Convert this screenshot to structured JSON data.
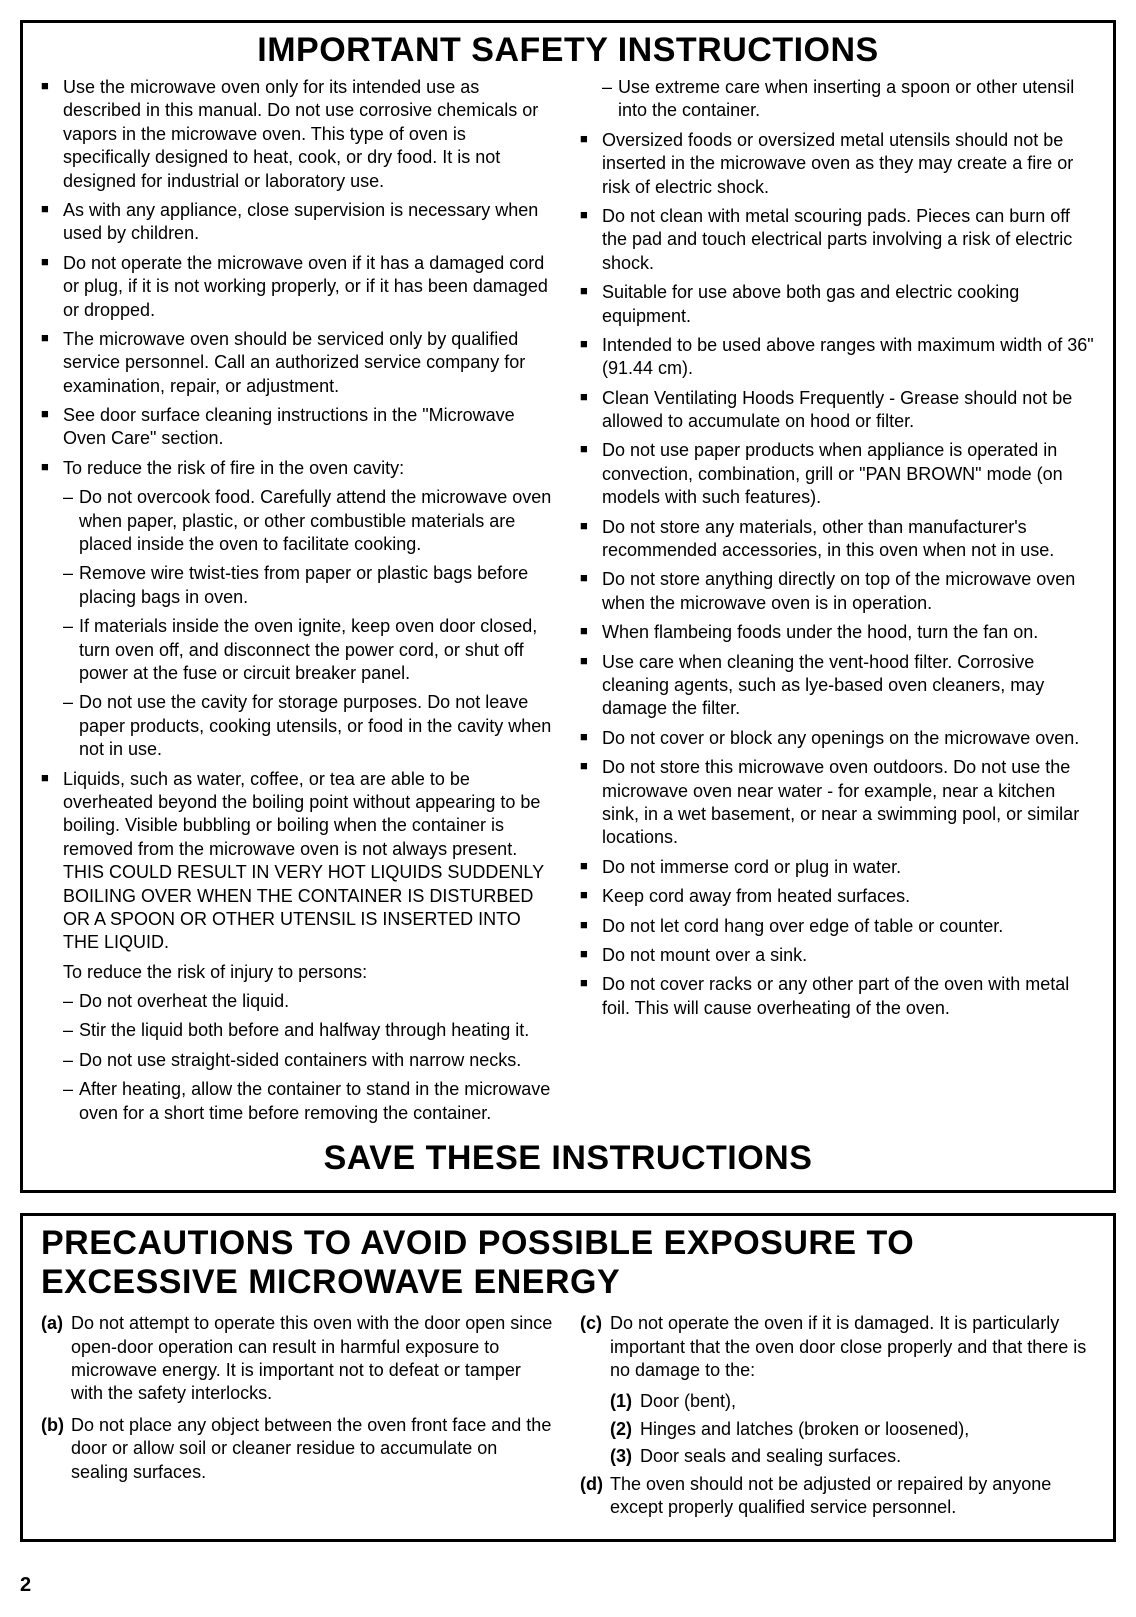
{
  "page_number": "2",
  "safety_section": {
    "title": "IMPORTANT SAFETY INSTRUCTIONS",
    "footer": "SAVE THESE INSTRUCTIONS",
    "left_items": [
      {
        "type": "bullet",
        "text": "Use the microwave oven only for its intended use as described in this manual. Do not use corrosive chemicals or vapors in the microwave oven. This type of oven is specifically designed to heat, cook, or dry food. It is not designed for industrial or laboratory use."
      },
      {
        "type": "bullet",
        "text": "As with any appliance, close supervision is necessary when used by children."
      },
      {
        "type": "bullet",
        "text": "Do not operate the microwave oven if it has a damaged cord or plug, if it is not working properly, or if it has been damaged or dropped."
      },
      {
        "type": "bullet",
        "text": "The microwave oven should be serviced only by qualified service personnel. Call an authorized service company for examination, repair, or adjustment."
      },
      {
        "type": "bullet",
        "text": "See door surface cleaning instructions in the \"Microwave Oven Care\" section."
      },
      {
        "type": "bullet",
        "text": "To reduce the risk of fire in the oven cavity:"
      },
      {
        "type": "sub",
        "text": "Do not overcook food. Carefully attend the microwave oven when paper, plastic, or other combustible materials are placed inside the oven to facilitate cooking."
      },
      {
        "type": "sub",
        "text": "Remove wire twist-ties from paper or plastic bags before placing bags in oven."
      },
      {
        "type": "sub",
        "text": "If materials inside the oven ignite, keep oven door closed, turn oven off, and disconnect the power cord, or shut off power at the fuse or circuit breaker panel."
      },
      {
        "type": "sub",
        "text": "Do not use the cavity for storage purposes. Do not leave paper products, cooking utensils, or food in the cavity when not in use."
      },
      {
        "type": "bullet",
        "text": "Liquids, such as water, coffee, or tea are able to be overheated beyond the boiling point without appearing to be boiling. Visible bubbling or boiling when the container is removed from the microwave oven is not always present. THIS COULD RESULT IN VERY HOT LIQUIDS SUDDENLY BOILING OVER WHEN THE CONTAINER IS DISTURBED OR A SPOON OR OTHER UTENSIL IS INSERTED INTO THE LIQUID."
      },
      {
        "type": "plain",
        "text": "To reduce the risk of injury to persons:"
      },
      {
        "type": "sub",
        "text": "Do not overheat the liquid."
      },
      {
        "type": "sub",
        "text": "Stir the liquid both before and halfway through heating it."
      },
      {
        "type": "sub",
        "text": "Do not use straight-sided containers with narrow necks."
      },
      {
        "type": "sub",
        "text": "After heating, allow the container to stand in the microwave oven for a short time before removing the container."
      }
    ],
    "right_items": [
      {
        "type": "sub",
        "text": "Use extreme care when inserting a spoon or other utensil into the container."
      },
      {
        "type": "bullet",
        "text": "Oversized foods or oversized metal utensils should not be inserted in the microwave oven as they may create a fire or risk of electric shock."
      },
      {
        "type": "bullet",
        "text": "Do not clean with metal scouring pads. Pieces can burn off the pad and touch electrical parts involving a risk of electric shock."
      },
      {
        "type": "bullet",
        "text": "Suitable for use above both gas and electric cooking equipment."
      },
      {
        "type": "bullet",
        "text": "Intended to be used above ranges with maximum width of 36\" (91.44 cm)."
      },
      {
        "type": "bullet",
        "text": "Clean Ventilating Hoods Frequently - Grease should not be allowed to accumulate on hood or filter."
      },
      {
        "type": "bullet",
        "text": "Do not use paper products when appliance is operated in convection, combination, grill or \"PAN BROWN\" mode (on models with such features)."
      },
      {
        "type": "bullet",
        "text": "Do not store any materials, other than manufacturer's recommended accessories, in this oven when not in use."
      },
      {
        "type": "bullet",
        "text": "Do not store anything directly on top of the microwave oven when the microwave oven is in operation."
      },
      {
        "type": "bullet",
        "text": "When flambeing foods under the hood, turn the fan on."
      },
      {
        "type": "bullet",
        "text": "Use care when cleaning the vent-hood filter. Corrosive cleaning agents, such as lye-based oven cleaners, may damage the filter."
      },
      {
        "type": "bullet",
        "text": "Do not cover or block any openings on the microwave oven."
      },
      {
        "type": "bullet",
        "text": "Do not store this microwave oven outdoors. Do not use the microwave oven near water - for example, near a kitchen sink, in a wet basement, or near a swimming pool, or similar locations."
      },
      {
        "type": "bullet",
        "text": "Do not immerse cord or plug in water."
      },
      {
        "type": "bullet",
        "text": "Keep cord away from heated surfaces."
      },
      {
        "type": "bullet",
        "text": "Do not let cord hang over edge of table or counter."
      },
      {
        "type": "bullet",
        "text": "Do not mount over a sink."
      },
      {
        "type": "bullet",
        "text": "Do not cover racks or any other part of the oven with metal foil. This will cause overheating of the oven."
      }
    ]
  },
  "precautions_section": {
    "title": "PRECAUTIONS TO AVOID POSSIBLE EXPOSURE TO EXCESSIVE MICROWAVE ENERGY",
    "left_items": [
      {
        "marker": "(a)",
        "text": "Do not attempt to operate this oven with the door open since open-door operation can result in harmful exposure to microwave energy. It is important not to defeat or tamper with the safety interlocks."
      },
      {
        "marker": "(b)",
        "text": "Do not place any object between the oven front face and the door or allow soil or cleaner residue to accumulate on sealing surfaces."
      }
    ],
    "right_items": [
      {
        "marker": "(c)",
        "text": "Do not operate the oven if it is damaged. It is particularly important that the oven door close properly and that there is no damage to the:",
        "subs": [
          {
            "marker": "(1)",
            "text": "Door (bent),"
          },
          {
            "marker": "(2)",
            "text": "Hinges and latches (broken or loosened),"
          },
          {
            "marker": "(3)",
            "text": "Door seals and sealing surfaces."
          }
        ]
      },
      {
        "marker": "(d)",
        "text": "The oven should not be adjusted or repaired by anyone except properly qualified service personnel."
      }
    ]
  }
}
